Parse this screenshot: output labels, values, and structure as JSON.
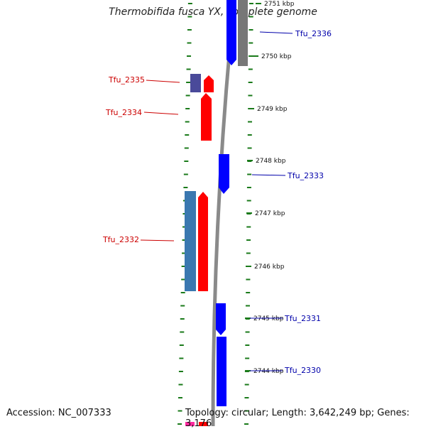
{
  "title": "Thermobifida fusca YX, complete genome",
  "accession": "Accession: NC_007333",
  "summary": "Topology: circular; Length: 3,642,249 bp; Genes: 3,176",
  "colors": {
    "forward_label": "#cc0000",
    "reverse_label": "#0000aa",
    "tick": "#1a7a1a",
    "backbone": "#8a8a8a",
    "red_gene": "#ff0000",
    "blue_gene": "#0000ff",
    "grey_gene": "#777777",
    "purple_gene": "#4a4a9a",
    "steel_gene": "#3a78b0",
    "magenta_gene": "#ff2aa0"
  },
  "scale_labels": [
    {
      "text": "2751 kbp"
    },
    {
      "text": "2750 kbp"
    },
    {
      "text": "2749 kbp"
    },
    {
      "text": "2748 kbp"
    },
    {
      "text": "2747 kbp"
    },
    {
      "text": "2746 kbp"
    },
    {
      "text": "2745 kbp"
    },
    {
      "text": "2744 kbp"
    }
  ],
  "gene_labels": [
    {
      "text": "Tfu_2336"
    },
    {
      "text": "Tfu_2335"
    },
    {
      "text": "Tfu_2334"
    },
    {
      "text": "Tfu_2333"
    },
    {
      "text": "Tfu_2332"
    },
    {
      "text": "Tfu_2331"
    },
    {
      "text": "Tfu_2330"
    }
  ]
}
